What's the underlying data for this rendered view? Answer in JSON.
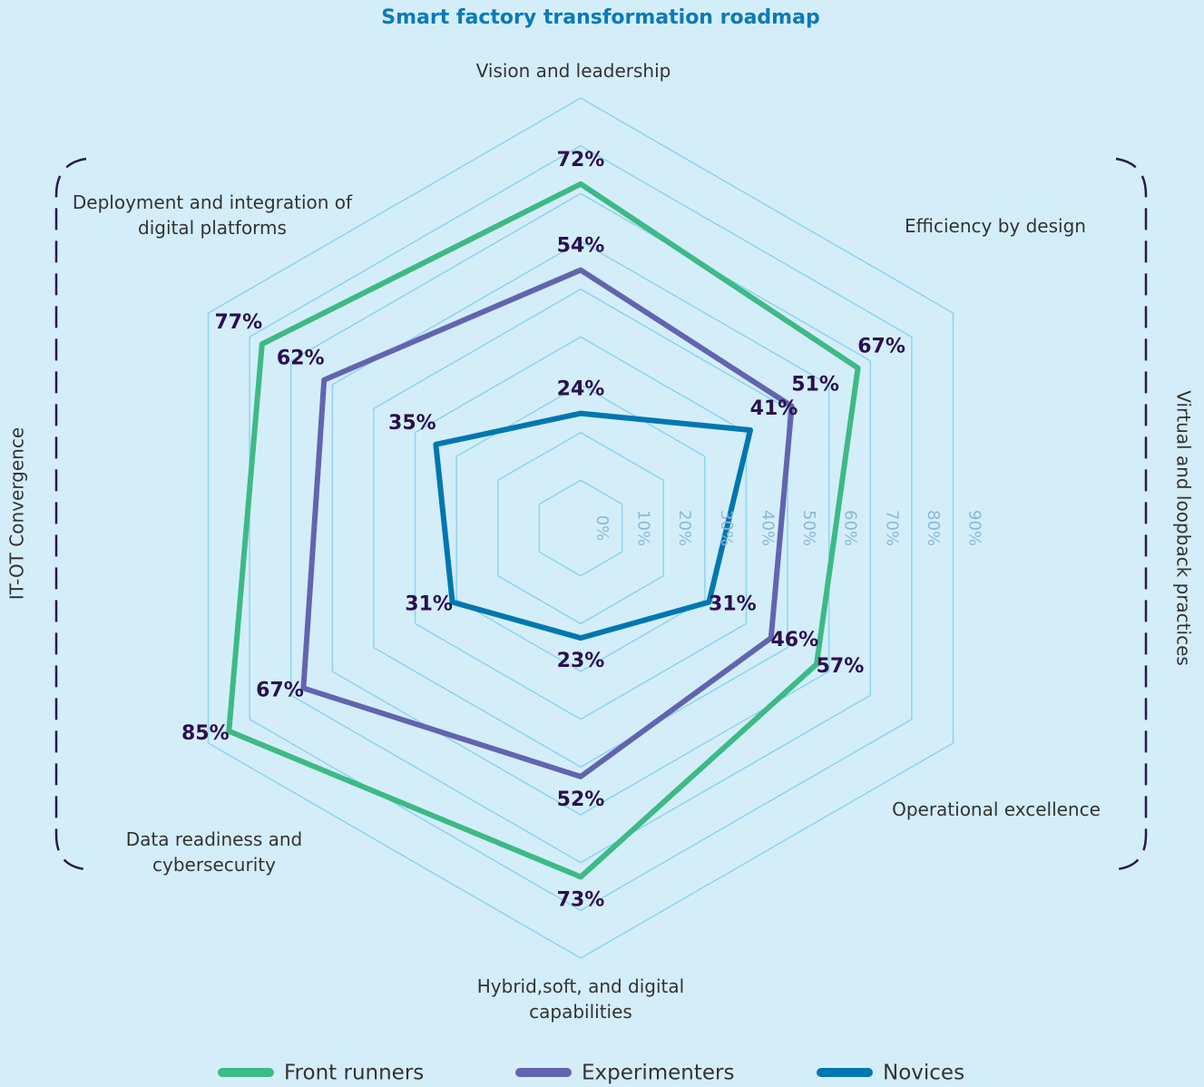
{
  "chart_data": {
    "type": "radar",
    "title": "Smart factory transformation roadmap",
    "categories": [
      "Vision and leadership",
      "Efficiency by design",
      "Operational excellence",
      "Hybrid,soft, and digital capabilities",
      "Data readiness and cybersecurity",
      "Deployment and integration of digital platforms"
    ],
    "series": [
      {
        "name": "Front runners",
        "color": "#3dba85",
        "values": [
          72,
          67,
          57,
          73,
          85,
          77
        ],
        "value_labels": [
          "72%",
          "67%",
          "57%",
          "73%",
          "85%",
          "77%"
        ]
      },
      {
        "name": "Experimenters",
        "color": "#6264b0",
        "values": [
          54,
          51,
          46,
          52,
          67,
          62
        ],
        "value_labels": [
          "54%",
          "51%",
          "46%",
          "52%",
          "67%",
          "62%"
        ]
      },
      {
        "name": "Novices",
        "color": "#0077b0",
        "values": [
          24,
          41,
          31,
          23,
          31,
          35
        ],
        "value_labels": [
          "24%",
          "41%",
          "31%",
          "23%",
          "31%",
          "35%"
        ]
      }
    ],
    "ylim": [
      0,
      90
    ],
    "yticks": [
      {
        "value": 0,
        "label": "0%"
      },
      {
        "value": 10,
        "label": "10%"
      },
      {
        "value": 20,
        "label": "20%"
      },
      {
        "value": 30,
        "label": "30%"
      },
      {
        "value": 40,
        "label": "40%"
      },
      {
        "value": 50,
        "label": "50%"
      },
      {
        "value": 60,
        "label": "60%"
      },
      {
        "value": 70,
        "label": "70%"
      },
      {
        "value": 80,
        "label": "80%"
      },
      {
        "value": 90,
        "label": "90%"
      }
    ],
    "annotations": [
      "IT-OT Convergence",
      "Virtual and loopback practices"
    ],
    "legend": "bottom"
  }
}
